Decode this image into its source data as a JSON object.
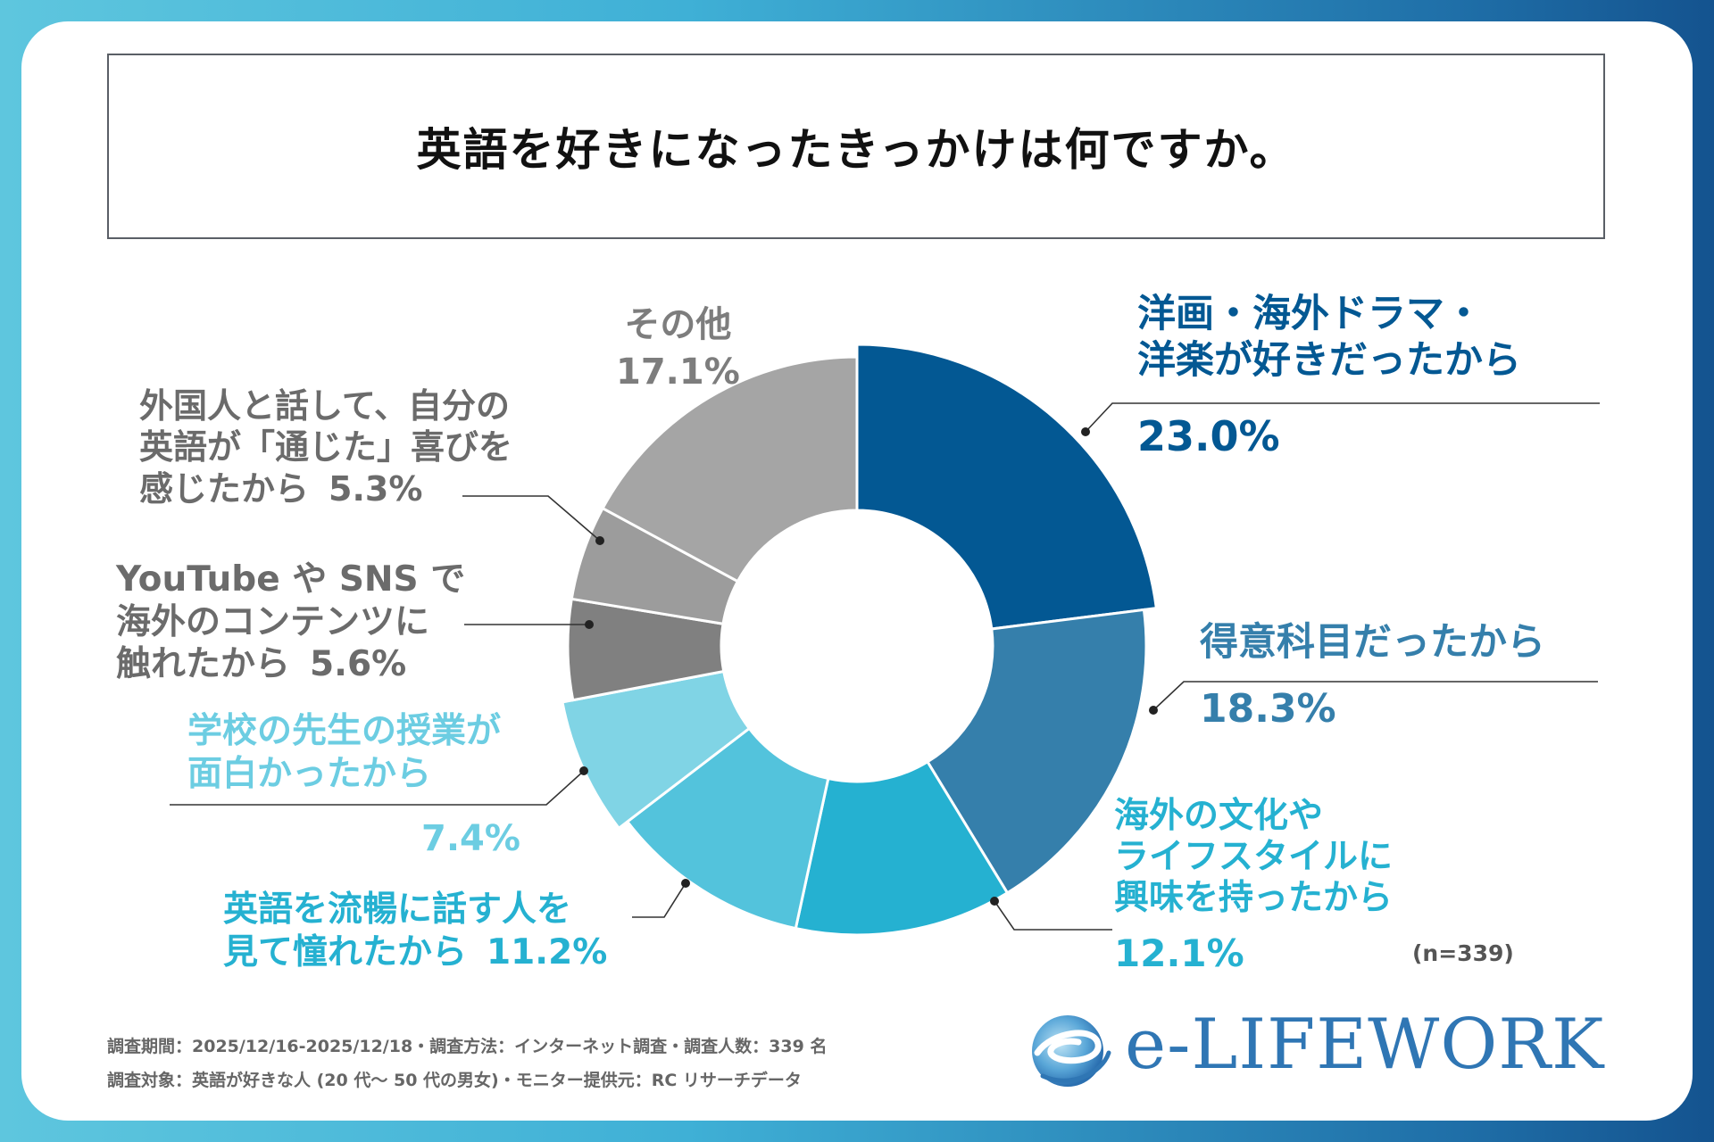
{
  "title": "英語を好きになったきっかけは何ですか。",
  "colors": {
    "c1": "#035893",
    "c2": "#357fab",
    "c3": "#25b1d1",
    "c4": "#53c3dc",
    "c5": "#80d4e5",
    "c6": "#808080",
    "c7": "#9c9c9c",
    "c8": "#a5a5a5"
  },
  "chart_data": {
    "type": "pie",
    "variant": "donut",
    "sample_size": "(n=339)",
    "slices": [
      {
        "label_lines": [
          "洋画・海外ドラマ・",
          "洋楽が好きだったから"
        ],
        "value": 23.0,
        "value_label": "23.0%"
      },
      {
        "label_lines": [
          "得意科目だったから"
        ],
        "value": 18.3,
        "value_label": "18.3%"
      },
      {
        "label_lines": [
          "海外の文化や",
          "ライフスタイルに",
          "興味を持ったから"
        ],
        "value": 12.1,
        "value_label": "12.1%"
      },
      {
        "label_lines": [
          "英語を流暢に話す人を",
          "見て憧れたから"
        ],
        "value": 11.2,
        "value_label": "11.2%"
      },
      {
        "label_lines": [
          "学校の先生の授業が",
          "面白かったから"
        ],
        "value": 7.4,
        "value_label": "7.4%"
      },
      {
        "label_lines": [
          "YouTube や SNS で",
          "海外のコンテンツに",
          "触れたから"
        ],
        "value": 5.6,
        "value_label": "5.6%"
      },
      {
        "label_lines": [
          "外国人と話して、自分の",
          "英語が「通じた」喜びを",
          "感じたから"
        ],
        "value": 5.3,
        "value_label": "5.3%"
      },
      {
        "label_lines": [
          "その他"
        ],
        "value": 17.1,
        "value_label": "17.1%"
      }
    ]
  },
  "footer": {
    "line1": "調査期間：2025/12/16-2025/12/18・調査方法：インターネット調査・調査人数：339 名",
    "line2": "調査対象：英語が好きな人 (20 代～ 50 代の男女)・モニター提供元：RC リサーチデータ"
  },
  "logo": {
    "text": "e-LIFEWORK",
    "icon": "e-swirl-logo-icon"
  }
}
